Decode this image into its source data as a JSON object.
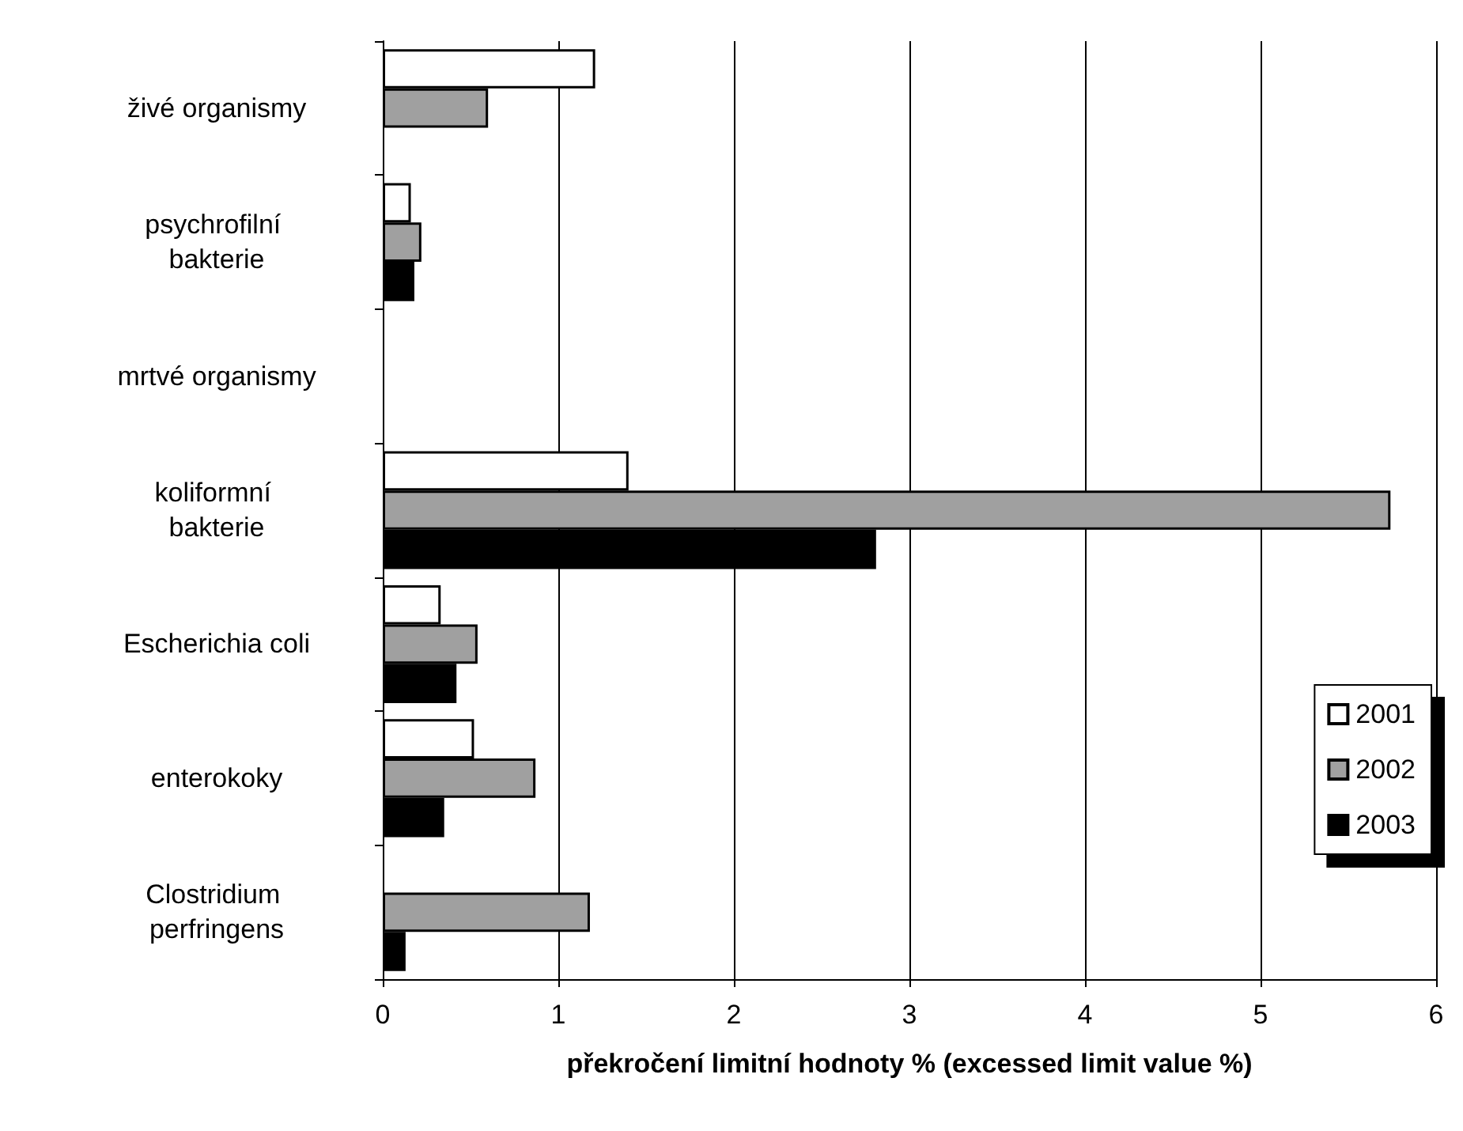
{
  "chart_data": {
    "type": "bar",
    "orientation": "horizontal",
    "xlabel": "překročení limitní hodnoty % (excessed limit value %)",
    "categories": [
      "živé organismy",
      "psychrofilní bakterie",
      "mrtvé organismy",
      "koliformní bakterie",
      "Escherichia coli",
      "enterokoky",
      "Clostridium perfringens"
    ],
    "series": [
      {
        "name": "2001",
        "color": "#ffffff",
        "values": [
          1.21,
          0.16,
          null,
          1.4,
          0.33,
          0.52,
          null
        ]
      },
      {
        "name": "2002",
        "color": "#a0a0a0",
        "values": [
          0.6,
          0.22,
          null,
          5.74,
          0.54,
          0.87,
          1.18
        ]
      },
      {
        "name": "2003",
        "color": "#000000",
        "values": [
          null,
          0.18,
          null,
          2.81,
          0.42,
          0.35,
          0.13
        ]
      }
    ],
    "xlim": [
      0,
      6
    ],
    "xticks": [
      0,
      1,
      2,
      3,
      4,
      5,
      6
    ],
    "grid": "x",
    "legend": "right"
  }
}
